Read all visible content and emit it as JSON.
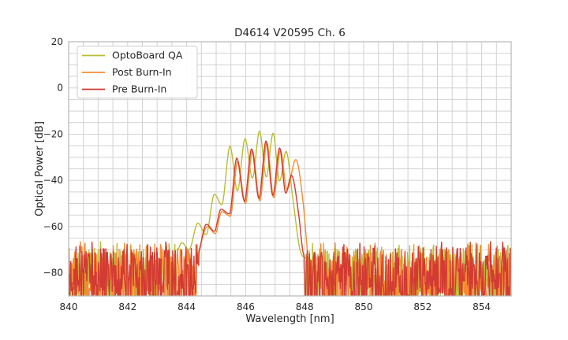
{
  "figure": {
    "title": "D4614 V20595 Ch. 6"
  },
  "chart_data": {
    "type": "line",
    "title": "D4614 V20595 Ch. 6",
    "xlabel": "Wavelength [nm]",
    "ylabel": "Optical Power [dB]",
    "xlim": [
      840,
      855
    ],
    "ylim": [
      -90,
      20
    ],
    "x_ticks": [
      840,
      842,
      844,
      846,
      848,
      850,
      852,
      854
    ],
    "y_ticks": [
      20,
      0,
      -20,
      -40,
      -60,
      -80
    ],
    "grid": {
      "on": true,
      "x_step_nm": 0.5,
      "y_step_db": 5,
      "color": "#d2d2d2"
    },
    "legend": {
      "position": "upper left"
    },
    "noise_floor": {
      "top_db": -69.5,
      "bottom_db": -96.5,
      "spike_db": -66.5
    },
    "series": [
      {
        "name": "OptoBoard QA",
        "color": "#b9bd33",
        "seed": 7,
        "noise_regions": [
          [
            840.0,
            843.68
          ],
          [
            848.05,
            855.0
          ]
        ],
        "signal_points": [
          [
            843.68,
            -71
          ],
          [
            843.84,
            -67
          ],
          [
            844.08,
            -70
          ],
          [
            844.38,
            -58.5
          ],
          [
            844.66,
            -63.5
          ],
          [
            844.94,
            -46
          ],
          [
            845.19,
            -50.5
          ],
          [
            845.47,
            -25.2
          ],
          [
            845.72,
            -44.5
          ],
          [
            845.98,
            -22
          ],
          [
            846.23,
            -39
          ],
          [
            846.47,
            -18.8
          ],
          [
            846.7,
            -38.5
          ],
          [
            846.93,
            -19.6
          ],
          [
            847.15,
            -40.2
          ],
          [
            847.37,
            -27.5
          ],
          [
            847.6,
            -48
          ],
          [
            847.84,
            -70
          ],
          [
            848.05,
            -74
          ]
        ]
      },
      {
        "name": "Post Burn-In",
        "color": "#f78b31",
        "seed": 13,
        "noise_regions": [
          [
            840.0,
            844.4
          ],
          [
            848.1,
            855.0
          ]
        ],
        "signal_points": [
          [
            844.4,
            -71
          ],
          [
            844.7,
            -60
          ],
          [
            844.97,
            -63
          ],
          [
            845.19,
            -53.5
          ],
          [
            845.48,
            -55.5
          ],
          [
            845.73,
            -31.8
          ],
          [
            845.99,
            -50
          ],
          [
            846.23,
            -27.3
          ],
          [
            846.48,
            -48.8
          ],
          [
            846.72,
            -23.8
          ],
          [
            846.95,
            -47.5
          ],
          [
            847.18,
            -26.8
          ],
          [
            847.4,
            -44
          ],
          [
            847.7,
            -31
          ],
          [
            847.95,
            -50
          ],
          [
            848.1,
            -72
          ]
        ]
      },
      {
        "name": "Pre Burn-In",
        "color": "#d23b33",
        "seed": 29,
        "noise_regions": [
          [
            840.0,
            844.42
          ],
          [
            847.98,
            855.0
          ]
        ],
        "signal_points": [
          [
            844.42,
            -71
          ],
          [
            844.67,
            -59
          ],
          [
            844.94,
            -62
          ],
          [
            845.16,
            -52.5
          ],
          [
            845.45,
            -54.5
          ],
          [
            845.7,
            -30.4
          ],
          [
            845.96,
            -49
          ],
          [
            846.2,
            -26.4
          ],
          [
            846.45,
            -47.8
          ],
          [
            846.69,
            -23
          ],
          [
            846.92,
            -46.5
          ],
          [
            847.15,
            -26
          ],
          [
            847.36,
            -45.5
          ],
          [
            847.55,
            -37.8
          ],
          [
            847.8,
            -55
          ],
          [
            847.93,
            -70
          ],
          [
            847.98,
            -73
          ]
        ]
      }
    ]
  }
}
